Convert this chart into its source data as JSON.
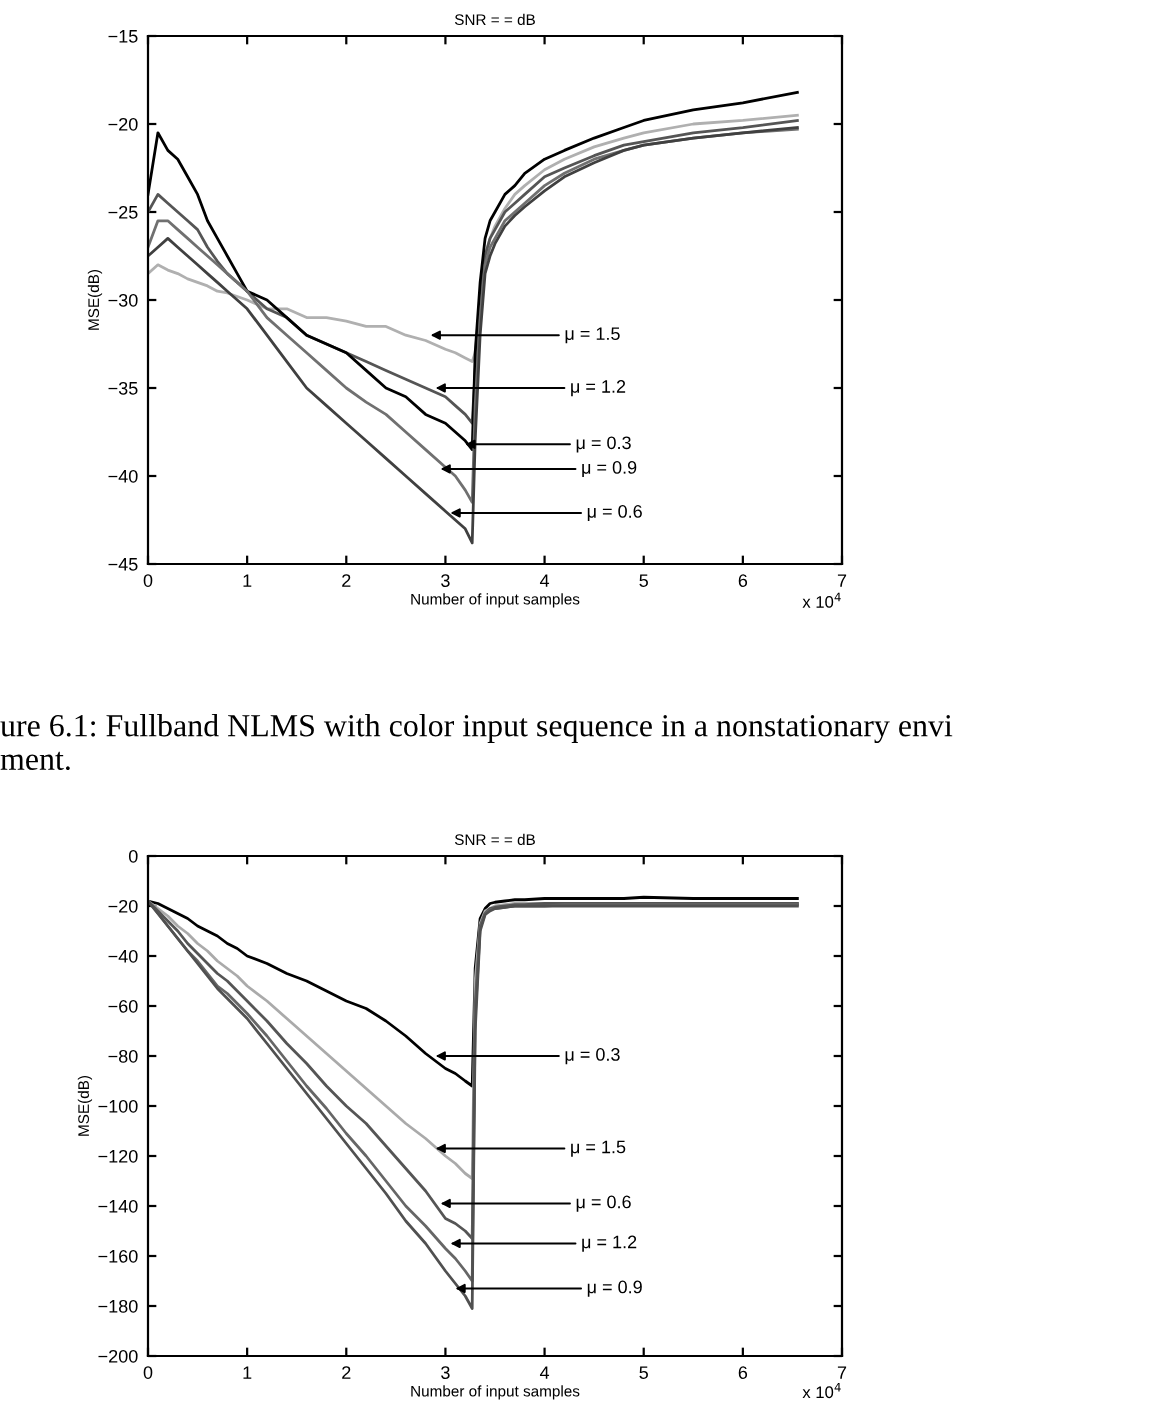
{
  "chart_data": [
    {
      "type": "line",
      "title": "SNR = = dB",
      "xlabel": "Number of input samples",
      "ylabel": "MSE(dB)",
      "x": [
        0,
        0.1,
        0.2,
        0.3,
        0.4,
        0.5,
        0.6,
        0.7,
        0.8,
        0.9,
        1.0,
        1.2,
        1.4,
        1.6,
        1.8,
        2.0,
        2.2,
        2.4,
        2.6,
        2.8,
        3.0,
        3.1,
        3.2,
        3.27,
        3.3,
        3.35,
        3.4,
        3.45,
        3.5,
        3.6,
        3.7,
        3.8,
        4.0,
        4.2,
        4.5,
        4.8,
        5.0,
        5.5,
        6.0,
        6.55
      ],
      "series": [
        {
          "color": "#b0b0b0",
          "values": [
            -28.5,
            -28,
            -28.3,
            -28.5,
            -28.8,
            -29,
            -29.2,
            -29.5,
            -29.6,
            -29.8,
            -30,
            -30.5,
            -30.5,
            -31,
            -31,
            -31.2,
            -31.5,
            -31.5,
            -32,
            -32.3,
            -32.8,
            -33,
            -33.3,
            -33.5,
            -33,
            -30,
            -27.5,
            -26.5,
            -25.8,
            -24.8,
            -24,
            -23.5,
            -22.6,
            -22,
            -21.3,
            -20.8,
            -20.5,
            -20,
            -19.8,
            -19.5
          ]
        },
        {
          "color": "#555555",
          "values": [
            -25,
            -24,
            -24.5,
            -25,
            -25.5,
            -26,
            -27,
            -27.8,
            -28.5,
            -29,
            -29.5,
            -30.5,
            -31,
            -32,
            -32.5,
            -33,
            -33.5,
            -34,
            -34.5,
            -35,
            -35.5,
            -36,
            -36.5,
            -37,
            -34,
            -30,
            -27.5,
            -26.5,
            -26,
            -25,
            -24.5,
            -24,
            -23,
            -22.5,
            -21.8,
            -21.2,
            -21,
            -20.5,
            -20.2,
            -19.8
          ]
        },
        {
          "color": "#000000",
          "values": [
            -24,
            -20.5,
            -21.5,
            -22,
            -23,
            -24,
            -25.5,
            -26.5,
            -27.5,
            -28.5,
            -29.5,
            -30,
            -31,
            -32,
            -32.5,
            -33,
            -34,
            -35,
            -35.5,
            -36.5,
            -37,
            -37.5,
            -38,
            -38.5,
            -33,
            -29,
            -26.5,
            -25.5,
            -25,
            -24,
            -23.5,
            -22.8,
            -22,
            -21.5,
            -20.8,
            -20.2,
            -19.8,
            -19.2,
            -18.8,
            -18.2
          ]
        },
        {
          "color": "#707070",
          "values": [
            -27,
            -25.5,
            -25.5,
            -26,
            -26.5,
            -27,
            -27.5,
            -28,
            -28.5,
            -29,
            -29.5,
            -31,
            -32,
            -33,
            -34,
            -35,
            -35.8,
            -36.5,
            -37.5,
            -38.5,
            -39.5,
            -40,
            -40.8,
            -41.5,
            -36,
            -31,
            -28,
            -27,
            -26.5,
            -25.5,
            -25,
            -24.5,
            -23.5,
            -22.8,
            -22,
            -21.5,
            -21.2,
            -20.8,
            -20.5,
            -20.3
          ]
        },
        {
          "color": "#404040",
          "values": [
            -27.5,
            -27,
            -26.5,
            -27,
            -27.5,
            -28,
            -28.5,
            -29,
            -29.5,
            -30,
            -30.5,
            -32,
            -33.5,
            -35,
            -36,
            -37,
            -38,
            -39,
            -40,
            -41,
            -42,
            -42.5,
            -43,
            -43.8,
            -38,
            -32,
            -28.5,
            -27.5,
            -26.8,
            -25.8,
            -25.2,
            -24.7,
            -23.8,
            -23,
            -22.2,
            -21.5,
            -21.2,
            -20.8,
            -20.5,
            -20.2
          ]
        }
      ],
      "xlim": [
        0,
        7
      ],
      "xticks": [
        0,
        1,
        2,
        3,
        4,
        5,
        6,
        7
      ],
      "ylim": [
        -45,
        -15
      ],
      "yticks": [
        -45,
        -40,
        -35,
        -30,
        -25,
        -20,
        -15
      ],
      "grid": false,
      "legend": false,
      "line_style": "solid",
      "marker": "none",
      "annotations": [
        {
          "text": "μ = 1.5",
          "x": 2.85,
          "y": -32
        },
        {
          "text": "μ = 1.2",
          "x": 2.9,
          "y": -35
        },
        {
          "text": "μ = 0.3",
          "x": 3.2,
          "y": -38.2
        },
        {
          "text": "μ = 0.9",
          "x": 2.95,
          "y": -39.6
        },
        {
          "text": "μ = 0.6",
          "x": 3.05,
          "y": -42.1
        },
        "x 10$^{4}$",
        "ure 6.1: Fullband NLMS with color input sequence in a nonstationary envi\nment."
      ]
    },
    {
      "type": "line",
      "title": "SNR = = dB",
      "xlabel": "Number of input samples",
      "ylabel": "MSE(dB)",
      "x": [
        0,
        0.1,
        0.2,
        0.3,
        0.4,
        0.5,
        0.6,
        0.7,
        0.8,
        0.9,
        1.0,
        1.2,
        1.4,
        1.6,
        1.8,
        2.0,
        2.2,
        2.4,
        2.6,
        2.8,
        3.0,
        3.1,
        3.2,
        3.27,
        3.3,
        3.35,
        3.4,
        3.45,
        3.5,
        3.6,
        3.7,
        3.8,
        4.0,
        4.2,
        4.5,
        4.8,
        5.0,
        5.5,
        6.0,
        6.55
      ],
      "series": [
        {
          "color": "#000000",
          "values": [
            -18,
            -19,
            -21,
            -23,
            -25,
            -28,
            -30,
            -32,
            -35,
            -37,
            -40,
            -43,
            -47,
            -50,
            -54,
            -58,
            -61,
            -66,
            -72,
            -79,
            -85,
            -87,
            -90,
            -92,
            -45,
            -25,
            -21,
            -19,
            -18.5,
            -18,
            -17.5,
            -17.5,
            -17,
            -17,
            -17,
            -17,
            -16.5,
            -17,
            -17,
            -17
          ]
        },
        {
          "color": "#aaaaaa",
          "values": [
            -18,
            -21,
            -24,
            -28,
            -31,
            -35,
            -38,
            -42,
            -45,
            -48,
            -52,
            -58,
            -65,
            -72,
            -79,
            -86,
            -93,
            -100,
            -107,
            -113,
            -120,
            -123,
            -127,
            -129,
            -50,
            -27,
            -22,
            -21,
            -20,
            -19.5,
            -19,
            -19,
            -19,
            -19,
            -19,
            -19,
            -19,
            -19,
            -19,
            -19
          ]
        },
        {
          "color": "#555555",
          "values": [
            -18,
            -22,
            -26,
            -30,
            -35,
            -39,
            -43,
            -47,
            -50,
            -54,
            -58,
            -66,
            -75,
            -83,
            -92,
            -100,
            -107,
            -116,
            -125,
            -134,
            -145,
            -147,
            -150,
            -153,
            -60,
            -28,
            -23,
            -21,
            -20.5,
            -20,
            -19.5,
            -19.5,
            -19,
            -19,
            -19,
            -19,
            -19,
            -19,
            -19,
            -19
          ]
        },
        {
          "color": "#666666",
          "values": [
            -18,
            -23,
            -28,
            -33,
            -38,
            -42,
            -47,
            -52,
            -55,
            -59,
            -63,
            -72,
            -82,
            -92,
            -101,
            -111,
            -120,
            -130,
            -140,
            -148,
            -157,
            -161,
            -166,
            -170,
            -65,
            -29,
            -23,
            -21.5,
            -21,
            -20.5,
            -20,
            -20,
            -20,
            -19.5,
            -19.5,
            -19.5,
            -19.5,
            -19.5,
            -19.5,
            -19.5
          ]
        },
        {
          "color": "#505050",
          "values": [
            -18,
            -23,
            -28,
            -33,
            -38,
            -43,
            -48,
            -53,
            -57,
            -61,
            -65,
            -75,
            -85,
            -95,
            -105,
            -115,
            -125,
            -135,
            -146,
            -155,
            -166,
            -171,
            -176,
            -181,
            -70,
            -30,
            -23.5,
            -22,
            -21,
            -20.5,
            -20,
            -20,
            -20,
            -20,
            -20,
            -20,
            -20,
            -20,
            -20,
            -20
          ]
        }
      ],
      "xlim": [
        0,
        7
      ],
      "xticks": [
        0,
        1,
        2,
        3,
        4,
        5,
        6,
        7
      ],
      "ylim": [
        -200,
        0
      ],
      "yticks": [
        -200,
        -180,
        -160,
        -140,
        -120,
        -100,
        -80,
        -60,
        -40,
        -20,
        0
      ],
      "grid": false,
      "legend": false,
      "line_style": "solid",
      "marker": "none",
      "annotations": [
        {
          "text": "μ = 0.3",
          "x": 2.9,
          "y": -80
        },
        {
          "text": "μ = 1.5",
          "x": 2.9,
          "y": -117
        },
        {
          "text": "μ = 0.6",
          "x": 2.95,
          "y": -139
        },
        {
          "text": "μ = 1.2",
          "x": 3.05,
          "y": -155
        },
        {
          "text": "μ = 0.9",
          "x": 3.1,
          "y": -173
        },
        "x 10$^{4}$"
      ]
    }
  ]
}
